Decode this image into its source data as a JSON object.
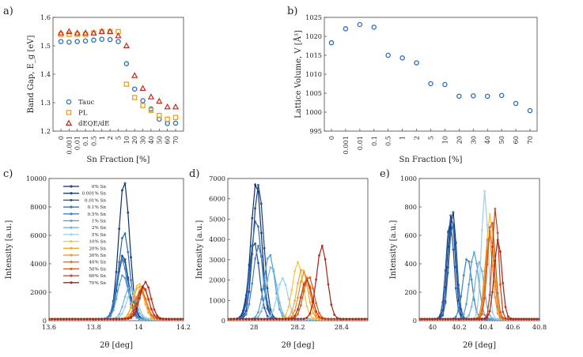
{
  "panels": [
    "a)",
    "b)",
    "c)",
    "d)",
    "e)"
  ],
  "chart_data": [
    {
      "panel": "a)",
      "type": "scatter",
      "xlabel": "Sn Fraction [%]",
      "ylabel": "Band Gap, E_g [eV]",
      "categories": [
        "0",
        "0.001",
        "0.01",
        "0.1",
        "0.5",
        "1",
        "2",
        "5",
        "10",
        "20",
        "30",
        "40",
        "50",
        "60",
        "70"
      ],
      "ylim": [
        1.2,
        1.6
      ],
      "yticks": [
        "1.2",
        "1.3",
        "1.4",
        "1.5",
        "1.6"
      ],
      "legend": "lower-left",
      "series": [
        {
          "name": "Tauc",
          "marker": "circle",
          "color": "#2b6cb8",
          "values": [
            1.515,
            1.513,
            1.515,
            1.517,
            1.52,
            1.523,
            1.522,
            1.515,
            1.437,
            1.348,
            1.307,
            1.278,
            1.242,
            1.227,
            1.228
          ]
        },
        {
          "name": "PL",
          "marker": "square",
          "color": "#e8a317",
          "values": [
            1.54,
            1.54,
            1.54,
            1.54,
            1.545,
            1.55,
            1.55,
            1.55,
            1.365,
            1.318,
            1.29,
            1.273,
            1.255,
            1.242,
            1.248
          ]
        },
        {
          "name": "dEQE/dE",
          "marker": "triangle",
          "color": "#c0281c",
          "values": [
            1.545,
            1.55,
            1.545,
            1.545,
            1.545,
            1.55,
            1.55,
            1.535,
            1.5,
            1.395,
            1.35,
            1.32,
            1.305,
            1.285,
            1.285
          ]
        }
      ]
    },
    {
      "panel": "b)",
      "type": "scatter",
      "xlabel": "Sn Fraction [%]",
      "ylabel": "Lattice Volume, V [Å³]",
      "categories": [
        "0",
        "0.001",
        "0.01",
        "0.1",
        "0.5",
        "1",
        "2",
        "5",
        "10",
        "20",
        "30",
        "40",
        "50",
        "60",
        "70"
      ],
      "ylim": [
        995,
        1025
      ],
      "yticks": [
        "995",
        "1000",
        "1005",
        "1010",
        "1015",
        "1020",
        "1025"
      ],
      "series": [
        {
          "name": "Lattice Volume",
          "marker": "circle",
          "color": "#2b6cb8",
          "values": [
            1018.3,
            1022.0,
            1023.1,
            1022.4,
            1015.0,
            1014.3,
            1013.0,
            1007.5,
            1007.3,
            1004.2,
            1004.3,
            1004.2,
            1004.4,
            1002.3,
            1000.4
          ]
        }
      ]
    },
    {
      "panel": "c)",
      "type": "line",
      "xlabel": "2θ [deg]",
      "ylabel": "Intensity [a.u.]",
      "xlim": [
        13.6,
        14.2
      ],
      "ylim": [
        0,
        10000
      ],
      "xticks": [
        "13.6",
        "13.8",
        "14",
        "14.2"
      ],
      "yticks": [
        "0",
        "2000",
        "4000",
        "6000",
        "8000",
        "10000"
      ],
      "legend": "top-left",
      "series": [
        {
          "name": "0% Sn",
          "color": "#0b2f6b",
          "center": 13.935,
          "height": 9700,
          "width": 0.05
        },
        {
          "name": "0.001% Sn",
          "color": "#123f84",
          "center": 13.93,
          "height": 4500,
          "width": 0.05
        },
        {
          "name": "0.01% Sn",
          "color": "#1b4f9c",
          "center": 13.93,
          "height": 4300,
          "width": 0.05
        },
        {
          "name": "0.1% Sn",
          "color": "#2a66b0",
          "center": 13.935,
          "height": 6100,
          "width": 0.05
        },
        {
          "name": "0.5% Sn",
          "color": "#3b7fc2",
          "center": 13.925,
          "height": 4200,
          "width": 0.05
        },
        {
          "name": "1% Sn",
          "color": "#5499cf",
          "center": 13.93,
          "height": 3100,
          "width": 0.05
        },
        {
          "name": "2% Sn",
          "color": "#72b3dc",
          "center": 13.96,
          "height": 2300,
          "width": 0.05
        },
        {
          "name": "5% Sn",
          "color": "#9ad0ea",
          "center": 13.97,
          "height": 2000,
          "width": 0.05
        },
        {
          "name": "10% Sn",
          "color": "#f9c23c",
          "center": 14.0,
          "height": 2500,
          "width": 0.05
        },
        {
          "name": "20% Sn",
          "color": "#f2a72e",
          "center": 14.0,
          "height": 2300,
          "width": 0.05
        },
        {
          "name": "30% Sn",
          "color": "#ea8e27",
          "center": 14.01,
          "height": 2100,
          "width": 0.05
        },
        {
          "name": "40% Sn",
          "color": "#e07321",
          "center": 14.01,
          "height": 2000,
          "width": 0.05
        },
        {
          "name": "50% Sn",
          "color": "#d4581c",
          "center": 14.02,
          "height": 2200,
          "width": 0.05
        },
        {
          "name": "60% Sn",
          "color": "#c23c19",
          "center": 14.02,
          "height": 2300,
          "width": 0.05
        },
        {
          "name": "70% Sn",
          "color": "#a52217",
          "center": 14.03,
          "height": 2600,
          "width": 0.05
        }
      ]
    },
    {
      "panel": "d)",
      "type": "line",
      "xlabel": "2θ [deg]",
      "ylabel": "Intensity [a.u.]",
      "xlim": [
        27.88,
        28.52
      ],
      "ylim": [
        0,
        7000
      ],
      "xticks": [
        "28",
        "28.2",
        "28.4"
      ],
      "yticks": [
        "0",
        "1000",
        "2000",
        "3000",
        "4000",
        "5000",
        "6000",
        "7000"
      ],
      "series": [
        {
          "name": "0% Sn",
          "color": "#0b2f6b",
          "center": 28.01,
          "height": 6750,
          "width": 0.05
        },
        {
          "name": "0.001% Sn",
          "color": "#123f84",
          "center": 28.02,
          "height": 6600,
          "width": 0.05
        },
        {
          "name": "0.01% Sn",
          "color": "#1b4f9c",
          "center": 28.0,
          "height": 3800,
          "width": 0.05
        },
        {
          "name": "0.1% Sn",
          "color": "#2a66b0",
          "center": 28.01,
          "height": 4900,
          "width": 0.05
        },
        {
          "name": "0.5% Sn",
          "color": "#3b7fc2",
          "center": 28.02,
          "height": 3600,
          "width": 0.05
        },
        {
          "name": "1% Sn",
          "color": "#5499cf",
          "center": 28.07,
          "height": 3200,
          "width": 0.05
        },
        {
          "name": "2% Sn",
          "color": "#72b3dc",
          "center": 28.08,
          "height": 2600,
          "width": 0.05
        },
        {
          "name": "5% Sn",
          "color": "#9ad0ea",
          "center": 28.13,
          "height": 2000,
          "width": 0.05
        },
        {
          "name": "10% Sn",
          "color": "#f9c23c",
          "center": 28.2,
          "height": 2800,
          "width": 0.05
        },
        {
          "name": "20% Sn",
          "color": "#f2a72e",
          "center": 28.22,
          "height": 2500,
          "width": 0.05
        },
        {
          "name": "30% Sn",
          "color": "#ea8e27",
          "center": 28.23,
          "height": 2300,
          "width": 0.05
        },
        {
          "name": "40% Sn",
          "color": "#e07321",
          "center": 28.24,
          "height": 2000,
          "width": 0.05
        },
        {
          "name": "50% Sn",
          "color": "#d4581c",
          "center": 28.25,
          "height": 2100,
          "width": 0.05
        },
        {
          "name": "60% Sn",
          "color": "#c23c19",
          "center": 28.24,
          "height": 1900,
          "width": 0.05
        },
        {
          "name": "70% Sn",
          "color": "#a52217",
          "center": 28.31,
          "height": 3600,
          "width": 0.05
        }
      ]
    },
    {
      "panel": "e)",
      "type": "line",
      "xlabel": "2θ [deg]",
      "ylabel": "Intensity [a.u.]",
      "xlim": [
        39.9,
        40.8
      ],
      "ylim": [
        0,
        1000
      ],
      "xticks": [
        "40",
        "40.2",
        "40.4",
        "40.6",
        "40.8"
      ],
      "yticks": [
        "0",
        "200",
        "400",
        "600",
        "800",
        "1000"
      ],
      "series": [
        {
          "name": "0% Sn",
          "color": "#0b2f6b",
          "center": 40.15,
          "height": 760,
          "width": 0.06
        },
        {
          "name": "0.001% Sn",
          "color": "#123f84",
          "center": 40.14,
          "height": 740,
          "width": 0.06
        },
        {
          "name": "0.01% Sn",
          "color": "#1b4f9c",
          "center": 40.13,
          "height": 700,
          "width": 0.06
        },
        {
          "name": "0.1% Sn",
          "color": "#2a66b0",
          "center": 40.15,
          "height": 680,
          "width": 0.06
        },
        {
          "name": "0.5% Sn",
          "color": "#3b7fc2",
          "center": 40.26,
          "height": 430,
          "width": 0.07
        },
        {
          "name": "1% Sn",
          "color": "#5499cf",
          "center": 40.31,
          "height": 470,
          "width": 0.07
        },
        {
          "name": "2% Sn",
          "color": "#72b3dc",
          "center": 40.35,
          "height": 400,
          "width": 0.07
        },
        {
          "name": "5% Sn",
          "color": "#9ad0ea",
          "center": 40.39,
          "height": 900,
          "width": 0.05
        },
        {
          "name": "10% Sn",
          "color": "#f9c23c",
          "center": 40.43,
          "height": 740,
          "width": 0.06
        },
        {
          "name": "20% Sn",
          "color": "#f2a72e",
          "center": 40.44,
          "height": 700,
          "width": 0.06
        },
        {
          "name": "30% Sn",
          "color": "#ea8e27",
          "center": 40.42,
          "height": 600,
          "width": 0.06
        },
        {
          "name": "40% Sn",
          "color": "#e07321",
          "center": 40.43,
          "height": 620,
          "width": 0.06
        },
        {
          "name": "50% Sn",
          "color": "#d4581c",
          "center": 40.44,
          "height": 700,
          "width": 0.06
        },
        {
          "name": "60% Sn",
          "color": "#c23c19",
          "center": 40.47,
          "height": 780,
          "width": 0.05
        },
        {
          "name": "70% Sn",
          "color": "#a52217",
          "center": 40.49,
          "height": 560,
          "width": 0.06
        }
      ]
    }
  ]
}
